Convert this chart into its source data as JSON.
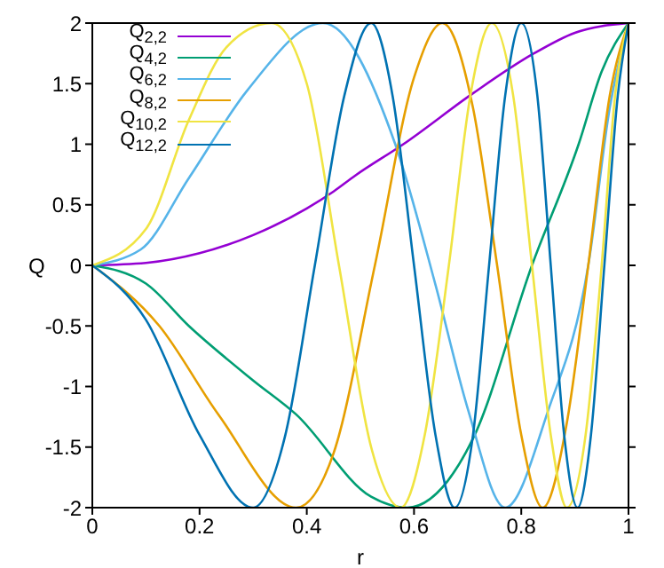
{
  "chart_data": {
    "type": "line",
    "xlabel": "r",
    "ylabel": "Q",
    "xlim": [
      0,
      1
    ],
    "xticks": [
      0,
      0.2,
      0.4,
      0.6,
      0.8,
      1
    ],
    "ylim": [
      -2,
      2
    ],
    "yticks": [
      -2,
      -1.5,
      -1,
      -0.5,
      0,
      0.5,
      1,
      1.5,
      2
    ],
    "grid": false,
    "legend": "top left",
    "marker": "none",
    "line_style": "solid",
    "series": [
      {
        "name": "Q$_{2,2}$",
        "color": "#9400d3",
        "x": [
          0,
          0.1,
          0.2,
          0.3,
          0.4,
          0.45,
          0.49,
          0.58,
          0.71,
          0.82,
          0.9,
          1
        ],
        "values": [
          0,
          0.02,
          0.1,
          0.25,
          0.47,
          0.61,
          0.74,
          1,
          1.42,
          1.74,
          1.92,
          2
        ]
      },
      {
        "name": "Q$_{4,2}$",
        "color": "#009e73",
        "x": [
          0,
          0.1,
          0.18,
          0.3,
          0.38,
          0.52,
          0.587,
          0.71,
          0.82,
          0.907,
          0.95,
          1
        ],
        "values": [
          0,
          -0.15,
          -0.5,
          -0.95,
          -1.23,
          -1.91,
          -2,
          -1.43,
          0,
          1,
          1.6,
          2
        ]
      },
      {
        "name": "Q$_{6,2}$",
        "color": "#56b4e9",
        "x": [
          0,
          0.09,
          0.18,
          0.29,
          0.43,
          0.565,
          0.64,
          0.7,
          0.77,
          0.85,
          0.925,
          0.965,
          1
        ],
        "values": [
          0,
          0.13,
          0.72,
          1.45,
          2,
          1,
          -0.16,
          -1.18,
          -2,
          -1.2,
          0,
          1.3,
          2
        ]
      },
      {
        "name": "Q$_{8,2}$",
        "color": "#e69f00",
        "x": [
          0,
          0.125,
          0.235,
          0.38,
          0.45,
          0.527,
          0.6,
          0.653,
          0.71,
          0.755,
          0.8,
          0.84,
          0.885,
          0.925,
          0.965,
          1
        ],
        "values": [
          0,
          -0.5,
          -1.23,
          -2,
          -1.55,
          0,
          1.55,
          2,
          1.3,
          0,
          -1.4,
          -2,
          -1.3,
          0,
          1.4,
          2
        ]
      },
      {
        "name": "Q$_{10,2}$",
        "color": "#f0e442",
        "x": [
          0,
          0.1,
          0.18,
          0.25,
          0.334,
          0.4,
          0.46,
          0.52,
          0.575,
          0.62,
          0.665,
          0.705,
          0.745,
          0.785,
          0.82,
          0.855,
          0.885,
          0.92,
          0.95,
          0.975,
          1
        ],
        "values": [
          0,
          0.3,
          1.2,
          1.8,
          2,
          1.5,
          0,
          -1.5,
          -2,
          -1.4,
          0,
          1.4,
          2,
          1.4,
          0,
          -1.4,
          -2,
          -1.4,
          0,
          1.4,
          2
        ]
      },
      {
        "name": "Q$_{12,2}$",
        "color": "#0072b2",
        "x": [
          0,
          0.1,
          0.2,
          0.3,
          0.36,
          0.415,
          0.47,
          0.52,
          0.56,
          0.6,
          0.64,
          0.676,
          0.71,
          0.74,
          0.77,
          0.8,
          0.83,
          0.855,
          0.88,
          0.905,
          0.93,
          0.955,
          0.98,
          1
        ],
        "values": [
          0,
          -0.45,
          -1.4,
          -2,
          -1.4,
          0,
          1.4,
          2,
          1.4,
          0,
          -1.4,
          -2,
          -1.4,
          0,
          1.4,
          2,
          1.4,
          0,
          -1.4,
          -2,
          -1.4,
          0,
          1.4,
          2
        ]
      }
    ]
  }
}
